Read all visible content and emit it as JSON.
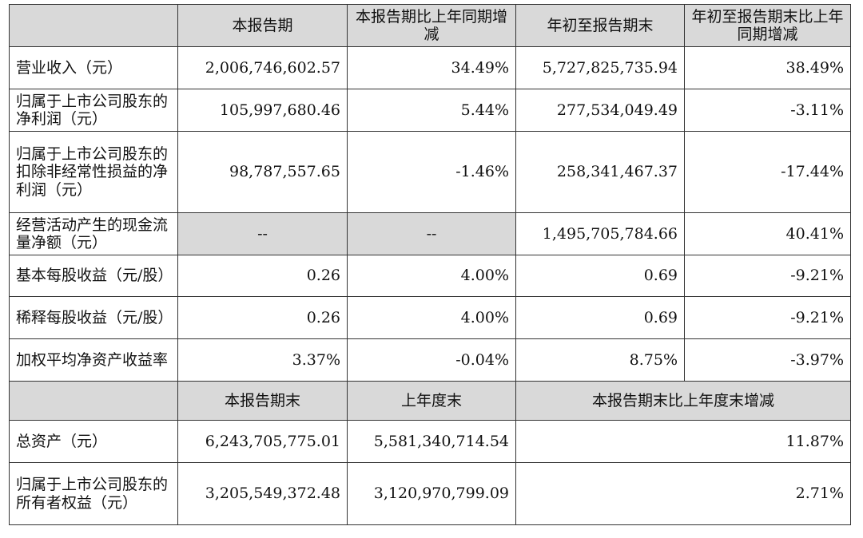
{
  "header1": {
    "col1": "本报告期",
    "col2": "本报告期比上年同期增减",
    "col3": "年初至报告期末",
    "col4": "年初至报告期末比上年同期增减"
  },
  "rows1": [
    {
      "label": "营业收入（元）",
      "v1": "2,006,746,602.57",
      "v2": "34.49%",
      "v3": "5,727,825,735.94",
      "v4": "38.49%"
    },
    {
      "label": "归属于上市公司股东的净利润（元）",
      "v1": "105,997,680.46",
      "v2": "5.44%",
      "v3": "277,534,049.49",
      "v4": "-3.11%"
    },
    {
      "label": "归属于上市公司股东的扣除非经常性损益的净利润（元）",
      "v1": "98,787,557.65",
      "v2": "-1.46%",
      "v3": "258,341,467.37",
      "v4": "-17.44%"
    },
    {
      "label": "经营活动产生的现金流量净额（元）",
      "v1": "--",
      "v2": "--",
      "v3": "1,495,705,784.66",
      "v4": "40.41%"
    },
    {
      "label": "基本每股收益（元/股）",
      "v1": "0.26",
      "v2": "4.00%",
      "v3": "0.69",
      "v4": "-9.21%"
    },
    {
      "label": "稀释每股收益（元/股）",
      "v1": "0.26",
      "v2": "4.00%",
      "v3": "0.69",
      "v4": "-9.21%"
    },
    {
      "label": "加权平均净资产收益率",
      "v1": "3.37%",
      "v2": "-0.04%",
      "v3": "8.75%",
      "v4": "-3.97%"
    }
  ],
  "header2": {
    "col1": "本报告期末",
    "col2": "上年度末",
    "col3": "本报告期末比上年度末增减"
  },
  "rows2": [
    {
      "label": "总资产（元）",
      "v1": "6,243,705,775.01",
      "v2": "5,581,340,714.54",
      "v3": "11.87%"
    },
    {
      "label": "归属于上市公司股东的所有者权益（元）",
      "v1": "3,205,549,372.48",
      "v2": "3,120,970,799.09",
      "v3": "2.71%"
    }
  ]
}
